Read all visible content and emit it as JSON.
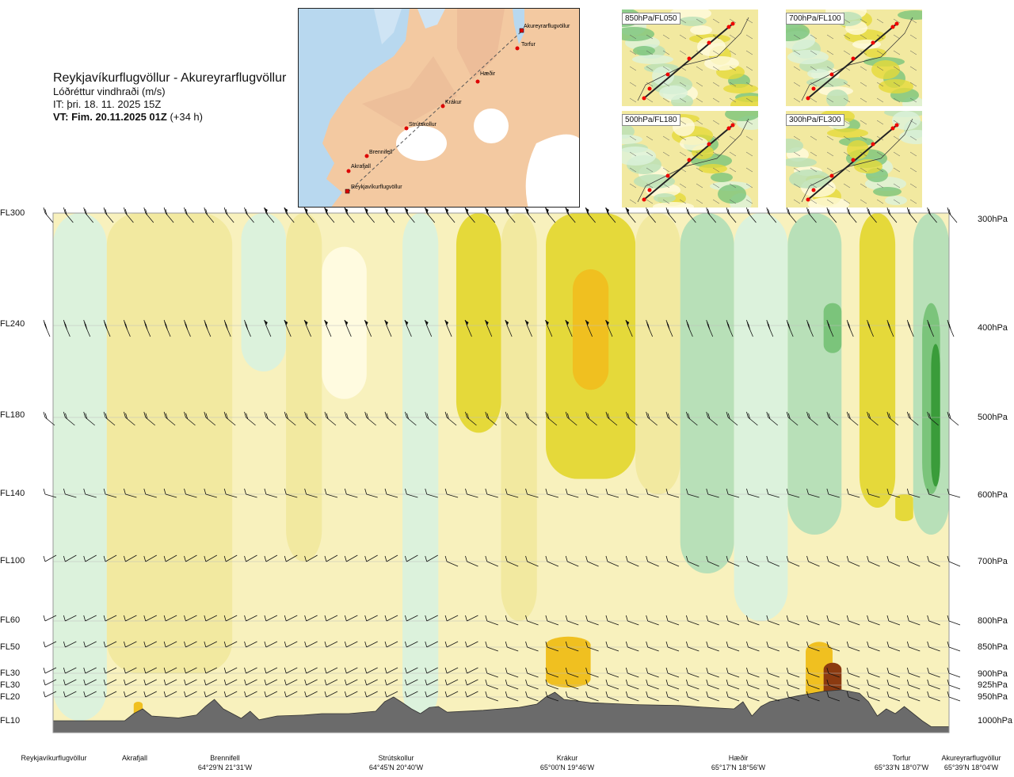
{
  "header": {
    "route": "Reykjavíkurflugvöllur - Akureyrarflugvöllur",
    "variable": "Lóðréttur vindhraði (m/s)",
    "issue_time": "IT: þri. 18. 11. 2025 15Z",
    "valid_time_bold": "VT: Fim. 20.11.2025 01Z",
    "valid_offset": "(+34 h)"
  },
  "route_map": {
    "places": [
      "Akureyrarflugvöllur",
      "Torfur",
      "Hæðir",
      "Krákur",
      "Strútskollur",
      "Brennifell",
      "Akrafjall",
      "Reykjavíkurflugvöllur"
    ]
  },
  "mini_maps": [
    {
      "label": "850hPa/FL050"
    },
    {
      "label": "700hPa/FL100"
    },
    {
      "label": "500hPa/FL180"
    },
    {
      "label": "300hPa/FL300"
    }
  ],
  "colors": {
    "strong_up": "#e5d93a",
    "up": "#f2e9a0",
    "weak_up": "#fffbe0",
    "weak_down": "#dcf2dc",
    "down": "#b8e0b8",
    "strong_down": "#7bc47b",
    "strongest_down": "#3a9c3a",
    "orange": "#f0c020",
    "brown": "#8b3a10",
    "terrain": "#6b6b6b",
    "map_land": "#f3c9a1",
    "map_sea": "#b8d8ef"
  },
  "chart_data": {
    "type": "heatmap",
    "title": "Reykjavíkurflugvöllur - Akureyrarflugvöllur",
    "variable": "Lóðréttur vindhraði (m/s)",
    "y_axis_left": [
      "FL300",
      "FL240",
      "FL180",
      "FL140",
      "FL100",
      "FL60",
      "FL50",
      "FL30",
      "FL30",
      "FL20",
      "FL10"
    ],
    "y_axis_right": [
      "300hPa",
      "400hPa",
      "500hPa",
      "600hPa",
      "700hPa",
      "800hPa",
      "850hPa",
      "900hPa",
      "925hPa",
      "950hPa",
      "1000hPa"
    ],
    "pressure_levels": [
      300,
      400,
      500,
      600,
      700,
      800,
      850,
      900,
      925,
      950,
      1000
    ],
    "x_sites": [
      {
        "name": "Reykjavíkurflugvöllur",
        "coord": ""
      },
      {
        "name": "Akrafjall",
        "coord": ""
      },
      {
        "name": "Brennifell",
        "coord": "64°29'N 21°31'W"
      },
      {
        "name": "Strútskollur",
        "coord": "64°45'N 20°40'W"
      },
      {
        "name": "Krákur",
        "coord": "65°00'N 19°46'W"
      },
      {
        "name": "Hæðir",
        "coord": "65°17'N 18°56'W"
      },
      {
        "name": "Torfur",
        "coord": "65°33'N 18°07'W"
      },
      {
        "name": "Akureyrarflugvöllur",
        "coord": "65°39'N 18°04'W"
      }
    ],
    "x_site_positions": [
      0.0,
      0.08,
      0.18,
      0.38,
      0.55,
      0.73,
      0.93,
      1.0
    ],
    "terrain_pressure_hpa": [
      [
        0.0,
        1000
      ],
      [
        0.08,
        1000
      ],
      [
        0.09,
        985
      ],
      [
        0.1,
        975
      ],
      [
        0.11,
        990
      ],
      [
        0.14,
        994
      ],
      [
        0.16,
        988
      ],
      [
        0.17,
        970
      ],
      [
        0.18,
        955
      ],
      [
        0.19,
        975
      ],
      [
        0.21,
        995
      ],
      [
        0.22,
        980
      ],
      [
        0.23,
        998
      ],
      [
        0.25,
        990
      ],
      [
        0.28,
        988
      ],
      [
        0.3,
        985
      ],
      [
        0.33,
        985
      ],
      [
        0.36,
        980
      ],
      [
        0.37,
        960
      ],
      [
        0.38,
        950
      ],
      [
        0.39,
        962
      ],
      [
        0.4,
        975
      ],
      [
        0.41,
        985
      ],
      [
        0.42,
        972
      ],
      [
        0.43,
        970
      ],
      [
        0.44,
        982
      ],
      [
        0.48,
        978
      ],
      [
        0.52,
        972
      ],
      [
        0.54,
        965
      ],
      [
        0.55,
        950
      ],
      [
        0.56,
        940
      ],
      [
        0.57,
        955
      ],
      [
        0.6,
        962
      ],
      [
        0.65,
        966
      ],
      [
        0.7,
        968
      ],
      [
        0.73,
        972
      ],
      [
        0.76,
        975
      ],
      [
        0.77,
        960
      ],
      [
        0.78,
        990
      ],
      [
        0.79,
        970
      ],
      [
        0.8,
        960
      ],
      [
        0.83,
        948
      ],
      [
        0.86,
        938
      ],
      [
        0.88,
        935
      ],
      [
        0.9,
        942
      ],
      [
        0.91,
        960
      ],
      [
        0.92,
        990
      ],
      [
        0.93,
        975
      ],
      [
        0.94,
        985
      ],
      [
        0.95,
        970
      ],
      [
        0.96,
        985
      ],
      [
        0.97,
        1000
      ],
      [
        0.98,
        1005
      ],
      [
        1.0,
        1005
      ]
    ],
    "vertical_velocity_bands": [
      {
        "x": [
          0.0,
          0.06
        ],
        "p": [
          300,
          1000
        ],
        "value": "weak_down"
      },
      {
        "x": [
          0.06,
          0.2
        ],
        "p": [
          300,
          900
        ],
        "value": "up"
      },
      {
        "x": [
          0.21,
          0.26
        ],
        "p": [
          300,
          450
        ],
        "value": "weak_down"
      },
      {
        "x": [
          0.26,
          0.3
        ],
        "p": [
          300,
          700
        ],
        "value": "up"
      },
      {
        "x": [
          0.3,
          0.35
        ],
        "p": [
          330,
          480
        ],
        "value": "weak_up"
      },
      {
        "x": [
          0.39,
          0.43
        ],
        "p": [
          300,
          1000
        ],
        "value": "weak_down"
      },
      {
        "x": [
          0.45,
          0.5
        ],
        "p": [
          300,
          520
        ],
        "value": "strong_up"
      },
      {
        "x": [
          0.5,
          0.54
        ],
        "p": [
          300,
          800
        ],
        "value": "up"
      },
      {
        "x": [
          0.55,
          0.65
        ],
        "p": [
          300,
          580
        ],
        "value": "strong_up"
      },
      {
        "x": [
          0.58,
          0.62
        ],
        "p": [
          350,
          470
        ],
        "value": "orange"
      },
      {
        "x": [
          0.65,
          0.7
        ],
        "p": [
          300,
          600
        ],
        "value": "up"
      },
      {
        "x": [
          0.7,
          0.76
        ],
        "p": [
          300,
          720
        ],
        "value": "down"
      },
      {
        "x": [
          0.76,
          0.82
        ],
        "p": [
          300,
          800
        ],
        "value": "weak_down"
      },
      {
        "x": [
          0.82,
          0.88
        ],
        "p": [
          300,
          660
        ],
        "value": "down"
      },
      {
        "x": [
          0.86,
          0.88
        ],
        "p": [
          380,
          430
        ],
        "value": "strong_down"
      },
      {
        "x": [
          0.9,
          0.94
        ],
        "p": [
          300,
          620
        ],
        "value": "strong_up"
      },
      {
        "x": [
          0.94,
          0.96
        ],
        "p": [
          600,
          640
        ],
        "value": "strong_up"
      },
      {
        "x": [
          0.96,
          1.0
        ],
        "p": [
          300,
          660
        ],
        "value": "down"
      },
      {
        "x": [
          0.97,
          0.99
        ],
        "p": [
          380,
          600
        ],
        "value": "strong_down"
      },
      {
        "x": [
          0.98,
          0.99
        ],
        "p": [
          420,
          590
        ],
        "value": "strongest_down"
      },
      {
        "x": [
          0.55,
          0.6
        ],
        "p": [
          830,
          930
        ],
        "value": "orange"
      },
      {
        "x": [
          0.84,
          0.87
        ],
        "p": [
          840,
          960
        ],
        "value": "orange"
      },
      {
        "x": [
          0.86,
          0.88
        ],
        "p": [
          880,
          960
        ],
        "value": "brown"
      },
      {
        "x": [
          0.09,
          0.1
        ],
        "p": [
          960,
          1000
        ],
        "value": "orange"
      }
    ],
    "wind_barb_levels_hpa": [
      300,
      400,
      500,
      600,
      700,
      800,
      850,
      900,
      925,
      950
    ],
    "wind_barb_columns": 46
  }
}
